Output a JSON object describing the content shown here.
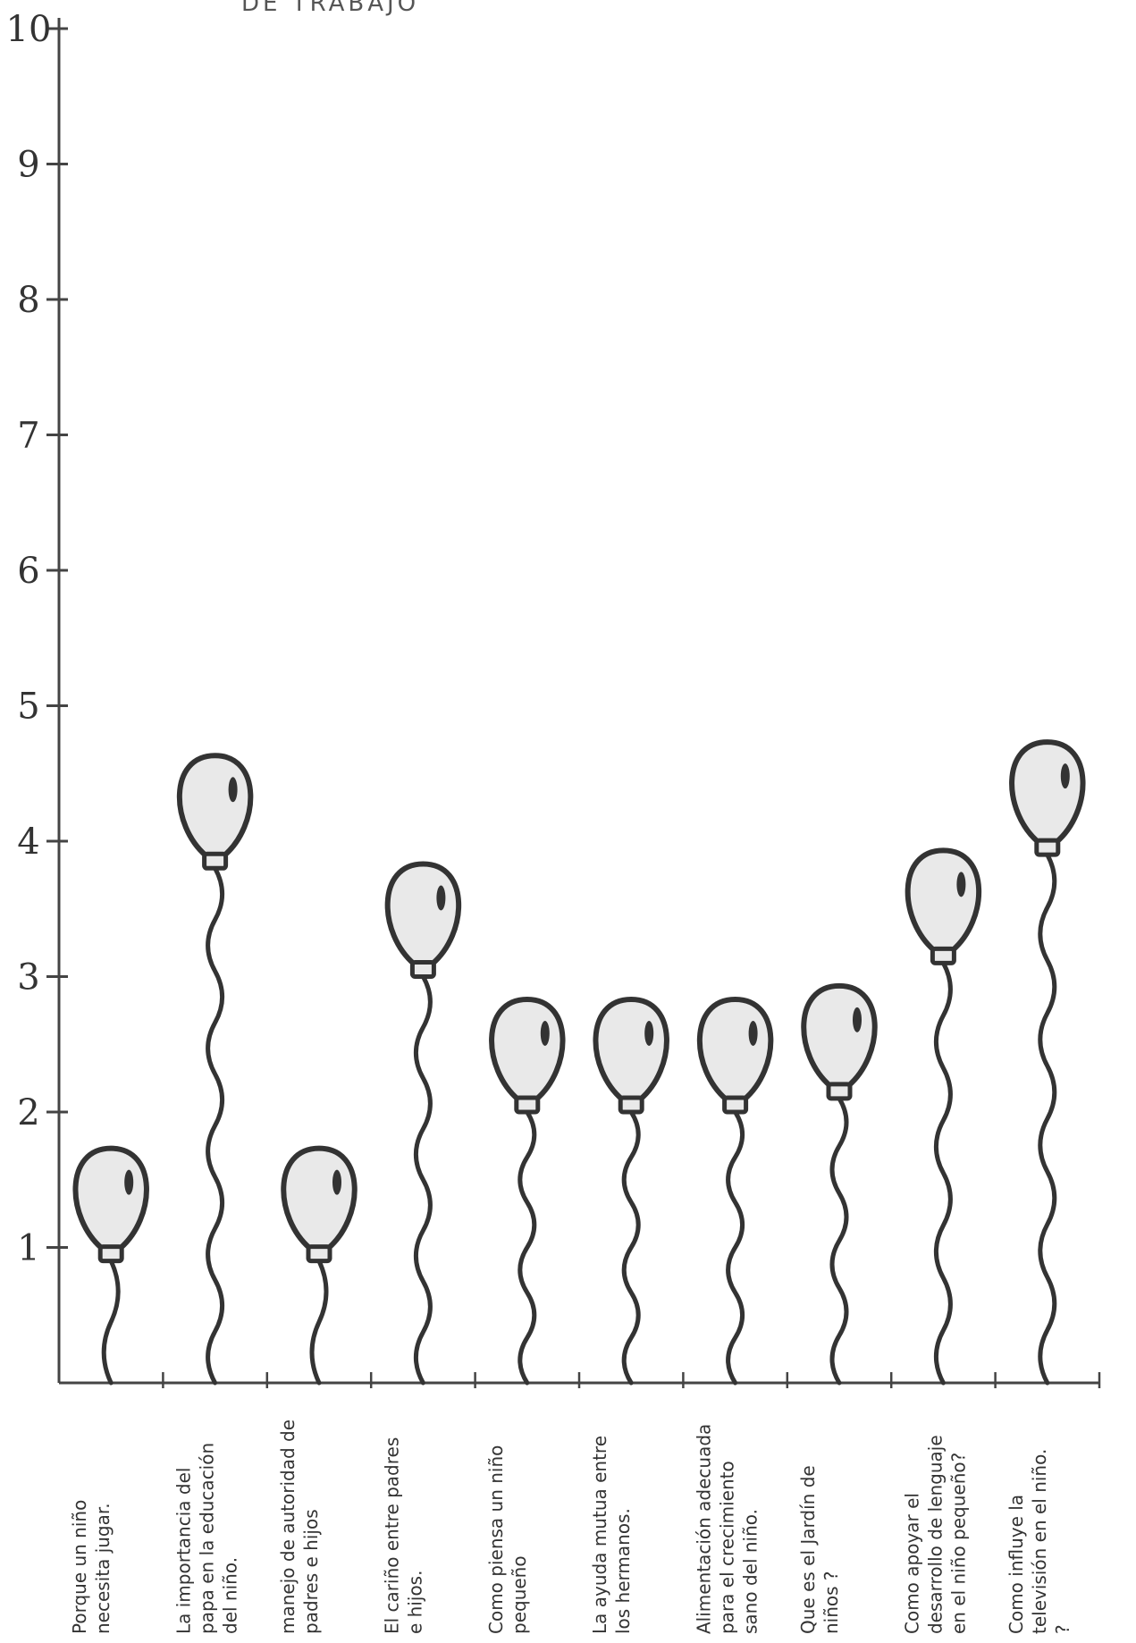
{
  "chart_data": {
    "type": "bar",
    "style": "balloon pictogram",
    "title": "DE TRABAJO",
    "ylim": [
      0,
      10
    ],
    "yticks": [
      "10",
      "9",
      "8",
      "7",
      "6",
      "5",
      "4",
      "3",
      "2",
      "1"
    ],
    "categories": [
      "Porque un niño necesita jugar.",
      "La importancia del papa en la educación del niño.",
      "manejo de autoridad de padres e hijos",
      "El cariño entre padres e hijos.",
      "Como piensa un niño pequeño",
      "La ayuda mutua entre los hermanos.",
      "Alimentación adecuada para el crecimiento sano del niño.",
      "Que es el Jardín de niños ?",
      "Como apoyar el desarrollo de lenguaje en el niño pequeño?",
      "Como influye la televisión en el niño. ?"
    ],
    "values": [
      0.9,
      3.8,
      0.9,
      3.0,
      2.0,
      2.0,
      2.0,
      2.1,
      3.1,
      3.9
    ],
    "colors": {
      "ink": "#333333",
      "balloon_fill": "#e9e9e9",
      "axis": "#444444"
    }
  }
}
